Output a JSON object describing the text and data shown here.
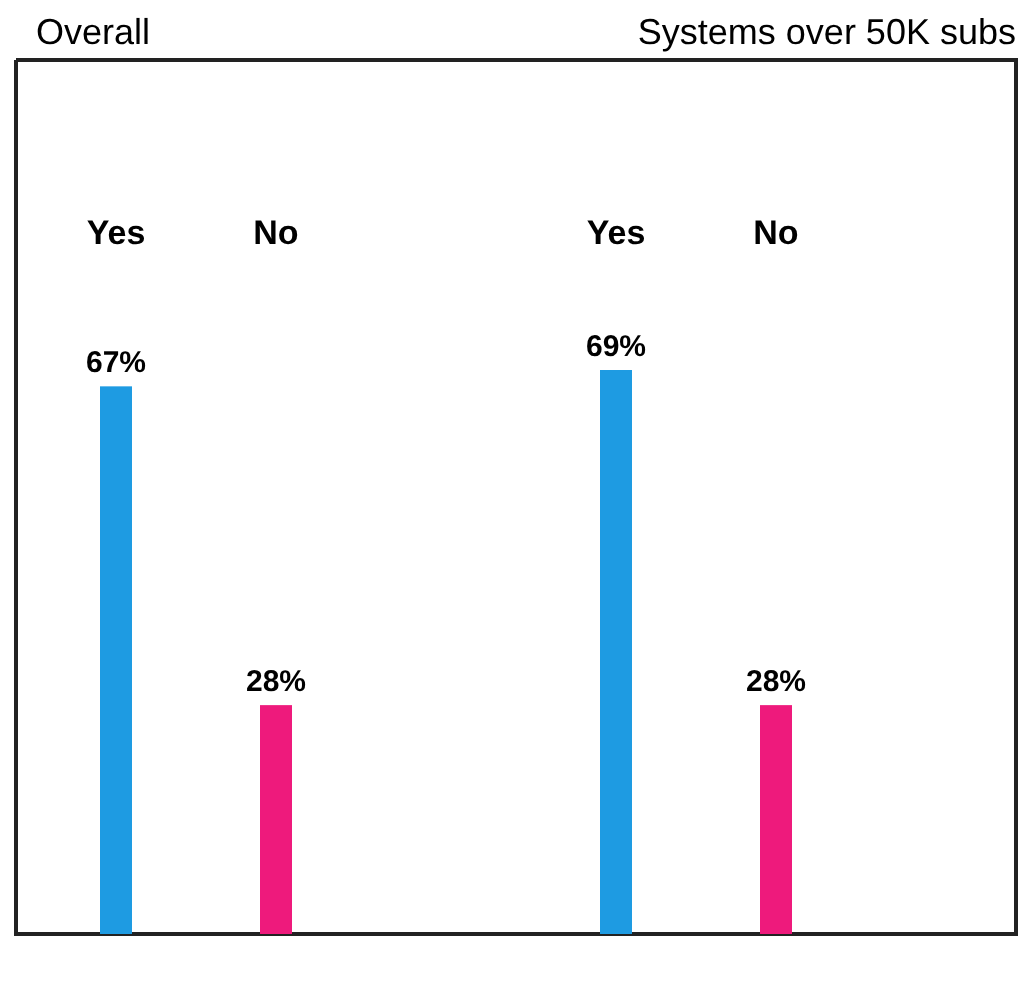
{
  "chart_data": [
    {
      "type": "bar",
      "title": "Overall",
      "categories": [
        "Yes",
        "No"
      ],
      "values": [
        67,
        28
      ],
      "value_labels": [
        "67%",
        "28%"
      ],
      "colors": [
        "#1e9be2",
        "#ee1a7c"
      ]
    },
    {
      "type": "bar",
      "title": "Systems over 50K subs",
      "categories": [
        "Yes",
        "No"
      ],
      "values": [
        69,
        28
      ],
      "value_labels": [
        "69%",
        "28%"
      ],
      "colors": [
        "#1e9be2",
        "#ee1a7c"
      ]
    }
  ]
}
